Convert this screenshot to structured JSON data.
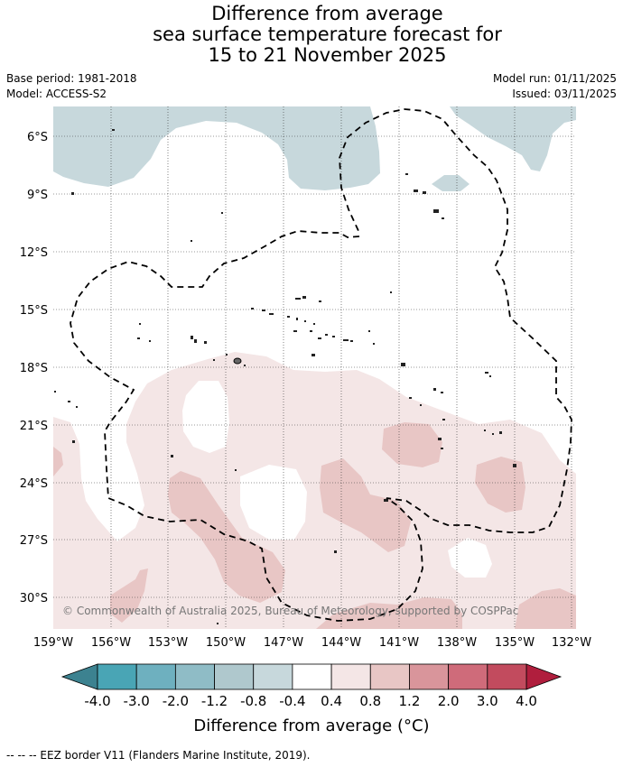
{
  "title": {
    "line1": "Difference from average",
    "line2": "sea surface temperature forecast for",
    "line3": "15 to 21 November 2025"
  },
  "meta": {
    "base_period": "Base period: 1981-2018",
    "model": "Model: ACCESS-S2",
    "model_run": "Model run: 01/11/2025",
    "issued": "Issued: 03/11/2025"
  },
  "map": {
    "lat_labels": [
      "6°S",
      "9°S",
      "12°S",
      "15°S",
      "18°S",
      "21°S",
      "24°S",
      "27°S",
      "30°S"
    ],
    "lon_labels": [
      "159°W",
      "156°W",
      "153°W",
      "150°W",
      "147°W",
      "144°W",
      "141°W",
      "138°W",
      "135°W",
      "132°W"
    ],
    "copyright": "© Commonwealth of Australia 2025, Bureau of Meteorology, supported by COSPPac"
  },
  "colorbar": {
    "ticks": [
      "-4.0",
      "-3.0",
      "-2.0",
      "-1.2",
      "-0.8",
      "-0.4",
      "0.4",
      "0.8",
      "1.2",
      "2.0",
      "3.0",
      "4.0"
    ],
    "colors": [
      "#49a5b5",
      "#6eb0bf",
      "#8fbcc6",
      "#afc8cd",
      "#c7d8dc",
      "#ffffff",
      "#f4e6e6",
      "#e8c6c5",
      "#d9959b",
      "#cf6b7a",
      "#c24b5e"
    ],
    "under_color": "#3c8290",
    "over_color": "#b01e3d",
    "label": "Difference from average (°C)"
  },
  "legend": {
    "eez": "-- -- -- EEZ border V11 (Flanders Marine Institute, 2019)."
  }
}
